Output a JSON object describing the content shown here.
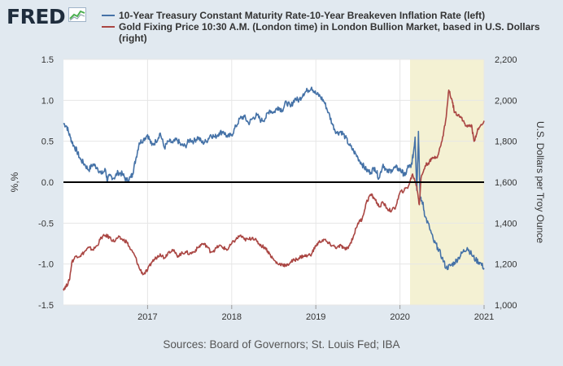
{
  "branding": {
    "logo": "FRED",
    "logo_icon": "trend-chart-icon"
  },
  "chart_data": {
    "type": "line",
    "xlabel": "",
    "x_ticks": [
      "2017",
      "2018",
      "2019",
      "2020",
      "2021"
    ],
    "x_range": [
      2016.0,
      2021.0
    ],
    "recession_shading": [
      2020.12,
      2021.0
    ],
    "recession_color": "#f4f1d3",
    "grid": true,
    "left_axis": {
      "label": "%,%",
      "range": [
        -1.5,
        1.5
      ],
      "ticks": [
        "1.5",
        "1.0",
        "0.5",
        "0.0",
        "-0.5",
        "-1.0",
        "-1.5"
      ]
    },
    "right_axis": {
      "label": "U.S. Dollars per Troy Ounce",
      "range": [
        1000,
        2200
      ],
      "ticks": [
        "2,200",
        "2,000",
        "1,800",
        "1,600",
        "1,400",
        "1,200",
        "1,000"
      ]
    },
    "series": [
      {
        "name": "10-Year Treasury Constant Maturity Rate-10-Year Breakeven Inflation Rate (left)",
        "axis": "left",
        "color": "#4572a7",
        "x": [
          2016.0,
          2016.04,
          2016.08,
          2016.12,
          2016.16,
          2016.2,
          2016.25,
          2016.3,
          2016.35,
          2016.4,
          2016.45,
          2016.5,
          2016.52,
          2016.55,
          2016.6,
          2016.65,
          2016.7,
          2016.75,
          2016.8,
          2016.82,
          2016.86,
          2016.9,
          2016.95,
          2017.0,
          2017.05,
          2017.1,
          2017.15,
          2017.2,
          2017.25,
          2017.3,
          2017.35,
          2017.4,
          2017.45,
          2017.5,
          2017.55,
          2017.6,
          2017.65,
          2017.7,
          2017.75,
          2017.8,
          2017.85,
          2017.9,
          2017.95,
          2018.0,
          2018.05,
          2018.1,
          2018.15,
          2018.2,
          2018.25,
          2018.3,
          2018.35,
          2018.4,
          2018.45,
          2018.5,
          2018.55,
          2018.6,
          2018.65,
          2018.7,
          2018.75,
          2018.8,
          2018.85,
          2018.9,
          2018.95,
          2019.0,
          2019.05,
          2019.1,
          2019.15,
          2019.2,
          2019.25,
          2019.3,
          2019.35,
          2019.4,
          2019.45,
          2019.5,
          2019.55,
          2019.6,
          2019.65,
          2019.7,
          2019.75,
          2019.8,
          2019.85,
          2019.9,
          2019.95,
          2020.0,
          2020.03,
          2020.06,
          2020.1,
          2020.13,
          2020.16,
          2020.18,
          2020.2,
          2020.22,
          2020.24,
          2020.27,
          2020.3,
          2020.35,
          2020.4,
          2020.45,
          2020.5,
          2020.55,
          2020.6,
          2020.65,
          2020.7,
          2020.75,
          2020.8,
          2020.85,
          2020.9,
          2020.95,
          2021.0
        ],
        "y": [
          0.72,
          0.68,
          0.55,
          0.45,
          0.38,
          0.28,
          0.22,
          0.15,
          0.22,
          0.18,
          0.1,
          0.15,
          0.02,
          0.08,
          0.05,
          0.12,
          0.1,
          0.02,
          0.06,
          0.1,
          0.28,
          0.48,
          0.52,
          0.58,
          0.45,
          0.5,
          0.6,
          0.42,
          0.5,
          0.48,
          0.52,
          0.45,
          0.44,
          0.52,
          0.5,
          0.55,
          0.48,
          0.5,
          0.58,
          0.55,
          0.6,
          0.62,
          0.55,
          0.58,
          0.68,
          0.78,
          0.8,
          0.72,
          0.78,
          0.82,
          0.75,
          0.78,
          0.88,
          0.85,
          0.92,
          0.88,
          0.98,
          0.92,
          1.02,
          1.0,
          1.08,
          1.12,
          1.16,
          1.08,
          1.05,
          0.98,
          0.85,
          0.7,
          0.6,
          0.62,
          0.55,
          0.45,
          0.38,
          0.3,
          0.22,
          0.15,
          0.12,
          0.18,
          0.05,
          0.22,
          0.12,
          0.15,
          0.18,
          0.15,
          0.12,
          0.08,
          0.2,
          0.18,
          0.35,
          0.55,
          -0.1,
          0.62,
          -0.2,
          -0.25,
          -0.42,
          -0.55,
          -0.72,
          -0.8,
          -0.92,
          -1.05,
          -1.02,
          -0.98,
          -0.92,
          -0.85,
          -0.8,
          -0.88,
          -0.95,
          -0.98,
          -1.05
        ]
      },
      {
        "name": "Gold Fixing Price 10:30 A.M. (London time) in London Bullion Market, based in U.S. Dollars (right)",
        "axis": "right",
        "color": "#aa4643",
        "x": [
          2016.0,
          2016.03,
          2016.07,
          2016.1,
          2016.15,
          2016.2,
          2016.25,
          2016.3,
          2016.35,
          2016.4,
          2016.45,
          2016.5,
          2016.55,
          2016.6,
          2016.65,
          2016.7,
          2016.75,
          2016.8,
          2016.85,
          2016.9,
          2016.95,
          2017.0,
          2017.05,
          2017.1,
          2017.15,
          2017.2,
          2017.25,
          2017.3,
          2017.35,
          2017.4,
          2017.45,
          2017.5,
          2017.55,
          2017.6,
          2017.65,
          2017.7,
          2017.75,
          2017.8,
          2017.85,
          2017.9,
          2017.95,
          2018.0,
          2018.05,
          2018.1,
          2018.15,
          2018.2,
          2018.25,
          2018.3,
          2018.35,
          2018.4,
          2018.45,
          2018.5,
          2018.55,
          2018.6,
          2018.65,
          2018.7,
          2018.75,
          2018.8,
          2018.85,
          2018.9,
          2018.95,
          2019.0,
          2019.05,
          2019.1,
          2019.15,
          2019.2,
          2019.25,
          2019.3,
          2019.35,
          2019.4,
          2019.45,
          2019.5,
          2019.55,
          2019.6,
          2019.65,
          2019.7,
          2019.75,
          2019.8,
          2019.85,
          2019.9,
          2019.95,
          2020.0,
          2020.05,
          2020.1,
          2020.15,
          2020.2,
          2020.23,
          2020.25,
          2020.3,
          2020.35,
          2020.4,
          2020.45,
          2020.5,
          2020.55,
          2020.58,
          2020.62,
          2020.65,
          2020.7,
          2020.75,
          2020.8,
          2020.85,
          2020.88,
          2020.92,
          2020.95,
          2021.0
        ],
        "y": [
          1080,
          1090,
          1120,
          1210,
          1240,
          1240,
          1260,
          1280,
          1270,
          1290,
          1330,
          1340,
          1330,
          1310,
          1330,
          1320,
          1310,
          1270,
          1240,
          1180,
          1150,
          1170,
          1210,
          1230,
          1250,
          1230,
          1260,
          1270,
          1240,
          1250,
          1260,
          1250,
          1260,
          1280,
          1300,
          1290,
          1260,
          1270,
          1290,
          1280,
          1270,
          1300,
          1320,
          1340,
          1320,
          1320,
          1330,
          1310,
          1290,
          1280,
          1250,
          1220,
          1200,
          1200,
          1190,
          1210,
          1220,
          1230,
          1240,
          1240,
          1250,
          1290,
          1310,
          1320,
          1300,
          1290,
          1280,
          1290,
          1270,
          1290,
          1340,
          1400,
          1420,
          1500,
          1540,
          1520,
          1480,
          1500,
          1470,
          1460,
          1480,
          1550,
          1560,
          1580,
          1640,
          1580,
          1490,
          1620,
          1680,
          1700,
          1720,
          1730,
          1800,
          1920,
          2050,
          2000,
          1940,
          1930,
          1900,
          1870,
          1880,
          1800,
          1850,
          1870,
          1900
        ]
      }
    ],
    "zero_line": 0.0
  },
  "source_text": "Sources: Board of Governors; St. Louis Fed; IBA"
}
